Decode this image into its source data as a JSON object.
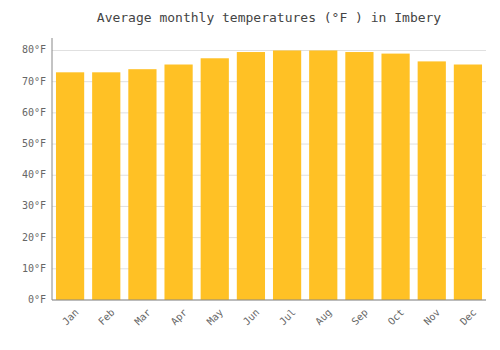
{
  "chart_data": {
    "type": "bar",
    "title": "Average monthly temperatures (°F ) in Imbery",
    "categories": [
      "Jan",
      "Feb",
      "Mar",
      "Apr",
      "May",
      "Jun",
      "Jul",
      "Aug",
      "Sep",
      "Oct",
      "Nov",
      "Dec"
    ],
    "values": [
      73.0,
      73.0,
      74.0,
      75.5,
      77.5,
      79.5,
      80.0,
      80.0,
      79.5,
      79.0,
      76.5,
      75.5
    ],
    "color": "#FFC125",
    "ylim": [
      0,
      84
    ],
    "yticks": [
      {
        "value": 0,
        "label": "0°F"
      },
      {
        "value": 10,
        "label": "10°F"
      },
      {
        "value": 20,
        "label": "20°F"
      },
      {
        "value": 30,
        "label": "30°F"
      },
      {
        "value": 40,
        "label": "40°F"
      },
      {
        "value": 50,
        "label": "50°F"
      },
      {
        "value": 60,
        "label": "60°F"
      },
      {
        "value": 70,
        "label": "70°F"
      },
      {
        "value": 80,
        "label": "80°F"
      }
    ],
    "grid": true
  }
}
